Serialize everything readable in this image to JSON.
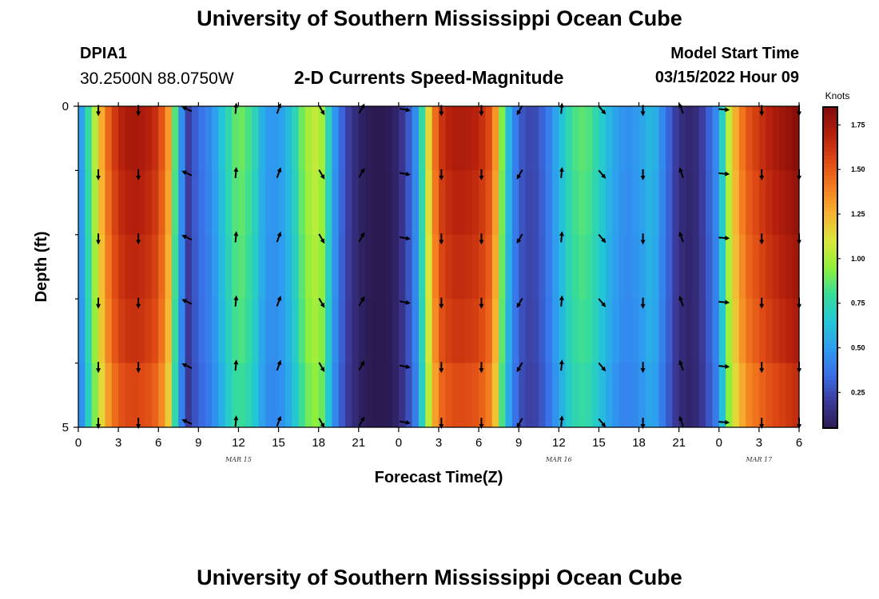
{
  "header": {
    "title": "University of Southern Mississippi Ocean Cube",
    "station": "DPIA1",
    "coords": "30.2500N  88.0750W",
    "subtitle": "2-D Currents Speed-Magnitude",
    "model_start_label": "Model Start Time",
    "model_start_value": "03/15/2022 Hour 09"
  },
  "footer": {
    "title": "University of Southern Mississippi Ocean Cube"
  },
  "colors": {
    "palette": [
      "#2b1a52",
      "#3b3a9a",
      "#3a6ee8",
      "#2e9df0",
      "#22c7d6",
      "#37dc9a",
      "#8ef03a",
      "#d8e83a",
      "#f7b531",
      "#f47d1f",
      "#df4a14",
      "#b51f0c",
      "#820c0a"
    ],
    "arrow": "#000000",
    "axis": "#000000"
  },
  "chart_data": {
    "type": "heatmap",
    "title": "2-D Currents Speed-Magnitude",
    "xlabel": "Forecast Time(Z)",
    "ylabel": "Depth (ft)",
    "colorbar_label": "Knots",
    "colorbar_ticks": [
      "0.25",
      "0.50",
      "0.75",
      "1.00",
      "1.25",
      "1.50",
      "1.75"
    ],
    "colorbar_tick_values": [
      0.25,
      0.5,
      0.75,
      1.0,
      1.25,
      1.5,
      1.75
    ],
    "vmin": 0.05,
    "vmax": 1.85,
    "xlim": [
      0,
      54
    ],
    "ylim": [
      0,
      5
    ],
    "x_tick_values": [
      0,
      3,
      6,
      9,
      12,
      15,
      18,
      21,
      24,
      27,
      30,
      33,
      36,
      39,
      42,
      45,
      48,
      51,
      54
    ],
    "x_tick_labels": [
      "0",
      "3",
      "6",
      "9",
      "12",
      "15",
      "18",
      "21",
      "0",
      "3",
      "6",
      "9",
      "12",
      "15",
      "18",
      "21",
      "0",
      "3",
      "6"
    ],
    "y_tick_values": [
      0,
      5
    ],
    "y_tick_labels": [
      "0",
      "5"
    ],
    "date_labels": [
      {
        "text": "MAR 15",
        "hour": 12
      },
      {
        "text": "MAR 16",
        "hour": 36
      },
      {
        "text": "MAR 17",
        "hour": 51
      }
    ],
    "speed_profile_hours": [
      0,
      1,
      2,
      3,
      4,
      5,
      6,
      6.8,
      7.5,
      8.2,
      9,
      10,
      11,
      12,
      13,
      14,
      15,
      16,
      17,
      18,
      18.5,
      19,
      20,
      21,
      22,
      23,
      24,
      25,
      25.5,
      26,
      27,
      28,
      29,
      30,
      31,
      31.5,
      32,
      33,
      34,
      35,
      36,
      37,
      38,
      39,
      40,
      41,
      42,
      43,
      44,
      45,
      46,
      47,
      48,
      48.5,
      49,
      50,
      51,
      52,
      53,
      54
    ],
    "speed_profile_knots": [
      0.4,
      0.9,
      1.4,
      1.68,
      1.75,
      1.72,
      1.62,
      1.3,
      0.6,
      0.2,
      0.35,
      0.45,
      0.7,
      0.92,
      0.8,
      0.5,
      0.48,
      0.65,
      0.98,
      1.08,
      0.9,
      0.55,
      0.25,
      0.1,
      0.05,
      0.04,
      0.12,
      0.35,
      0.55,
      1.0,
      1.6,
      1.72,
      1.72,
      1.68,
      1.52,
      1.15,
      0.7,
      0.3,
      0.22,
      0.35,
      0.58,
      0.82,
      0.88,
      0.72,
      0.55,
      0.45,
      0.5,
      0.62,
      0.38,
      0.15,
      0.1,
      0.25,
      0.5,
      0.9,
      1.2,
      1.5,
      1.62,
      1.72,
      1.78,
      1.85
    ],
    "depth_factors": [
      1.0,
      0.98,
      0.96,
      0.94,
      0.9
    ],
    "arrow_hours": [
      1.5,
      4.5,
      8.2,
      11.8,
      15,
      18.2,
      21.2,
      24.4,
      27.2,
      30.2,
      33.1,
      36.2,
      39.2,
      42.3,
      45.2,
      48.3,
      51.2,
      54
    ],
    "arrow_depths": [
      0.05,
      1.05,
      2.05,
      3.05,
      4.05,
      4.92
    ],
    "arrow_directions_deg": [
      180,
      180,
      295,
      5,
      20,
      150,
      30,
      100,
      180,
      180,
      210,
      5,
      140,
      180,
      340,
      95,
      180,
      180
    ]
  }
}
